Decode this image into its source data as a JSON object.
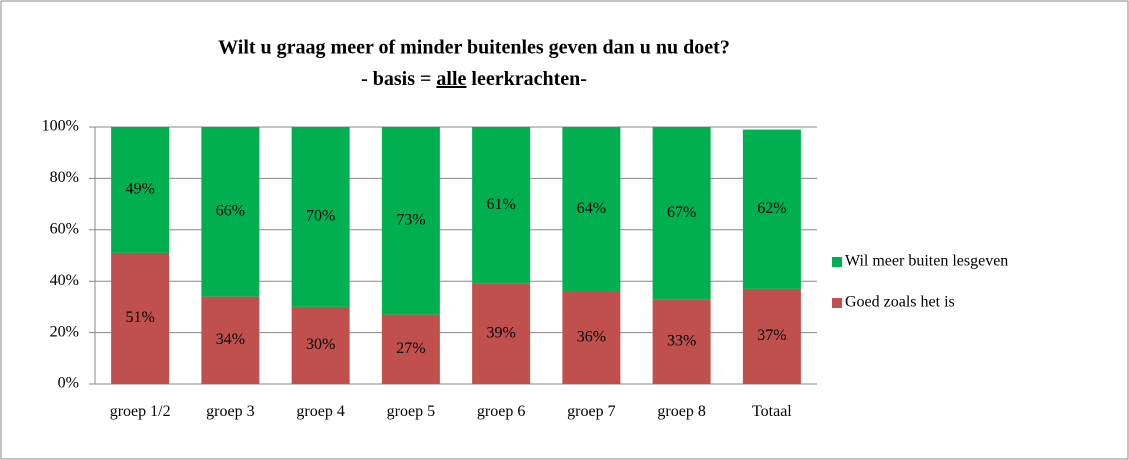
{
  "chart_data": {
    "type": "stacked_bar",
    "title": "Wilt u graag meer of minder buitenles geven dan u nu doet?",
    "subtitle": [
      "- basis = ",
      "alle",
      " leerkrachten-"
    ],
    "categories": [
      "groep 1/2",
      "groep 3",
      "groep 4",
      "groep 5",
      "groep 6",
      "groep 7",
      "groep 8",
      "Totaal"
    ],
    "series": [
      {
        "name": "Goed zoals het is",
        "color": "#c0504d",
        "values": [
          51,
          34,
          30,
          27,
          39,
          36,
          33,
          37
        ],
        "value_labels": [
          "51%",
          "34%",
          "30%",
          "27%",
          "39%",
          "36%",
          "33%",
          "37%"
        ]
      },
      {
        "name": "Wil meer buiten lesgeven",
        "color": "#00b050",
        "values": [
          49,
          66,
          70,
          73,
          61,
          64,
          67,
          62
        ],
        "value_labels": [
          "49%",
          "66%",
          "70%",
          "73%",
          "61%",
          "64%",
          "67%",
          "62%"
        ]
      }
    ],
    "ylim": [
      0,
      100
    ],
    "yticks": [
      {
        "value": 0,
        "label": "0%"
      },
      {
        "value": 20,
        "label": "20%"
      },
      {
        "value": 40,
        "label": "40%"
      },
      {
        "value": 60,
        "label": "60%"
      },
      {
        "value": 80,
        "label": "80%"
      },
      {
        "value": 100,
        "label": "100%"
      }
    ],
    "grid": true,
    "legend": "right"
  }
}
